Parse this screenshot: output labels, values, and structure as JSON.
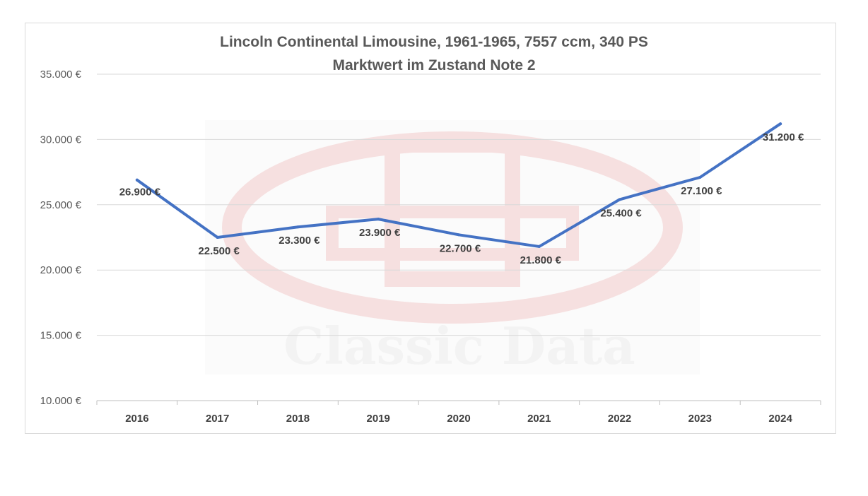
{
  "chart_data": {
    "type": "line",
    "title": "Lincoln Continental Limousine, 1961-1965, 7557 ccm, 340 PS",
    "subtitle": "Marktwert im Zustand Note 2",
    "categories": [
      "2016",
      "2017",
      "2018",
      "2019",
      "2020",
      "2021",
      "2022",
      "2023",
      "2024"
    ],
    "series": [
      {
        "values": [
          26900,
          22500,
          23300,
          23900,
          22700,
          21800,
          25400,
          27100,
          31200
        ]
      }
    ],
    "data_labels": [
      "26.900 €",
      "22.500 €",
      "23.300 €",
      "23.900 €",
      "22.700 €",
      "21.800 €",
      "25.400 €",
      "27.100 €",
      "31.200 €"
    ],
    "yticks": [
      10000,
      15000,
      20000,
      25000,
      30000,
      35000
    ],
    "ytick_labels": [
      "10.000 €",
      "15.000 €",
      "20.000 €",
      "25.000 €",
      "30.000 €",
      "35.000 €"
    ],
    "ylim": [
      10000,
      35000
    ],
    "grid": true,
    "legend": "none",
    "line_color": "#4472c4",
    "watermark": "Classic Data"
  }
}
